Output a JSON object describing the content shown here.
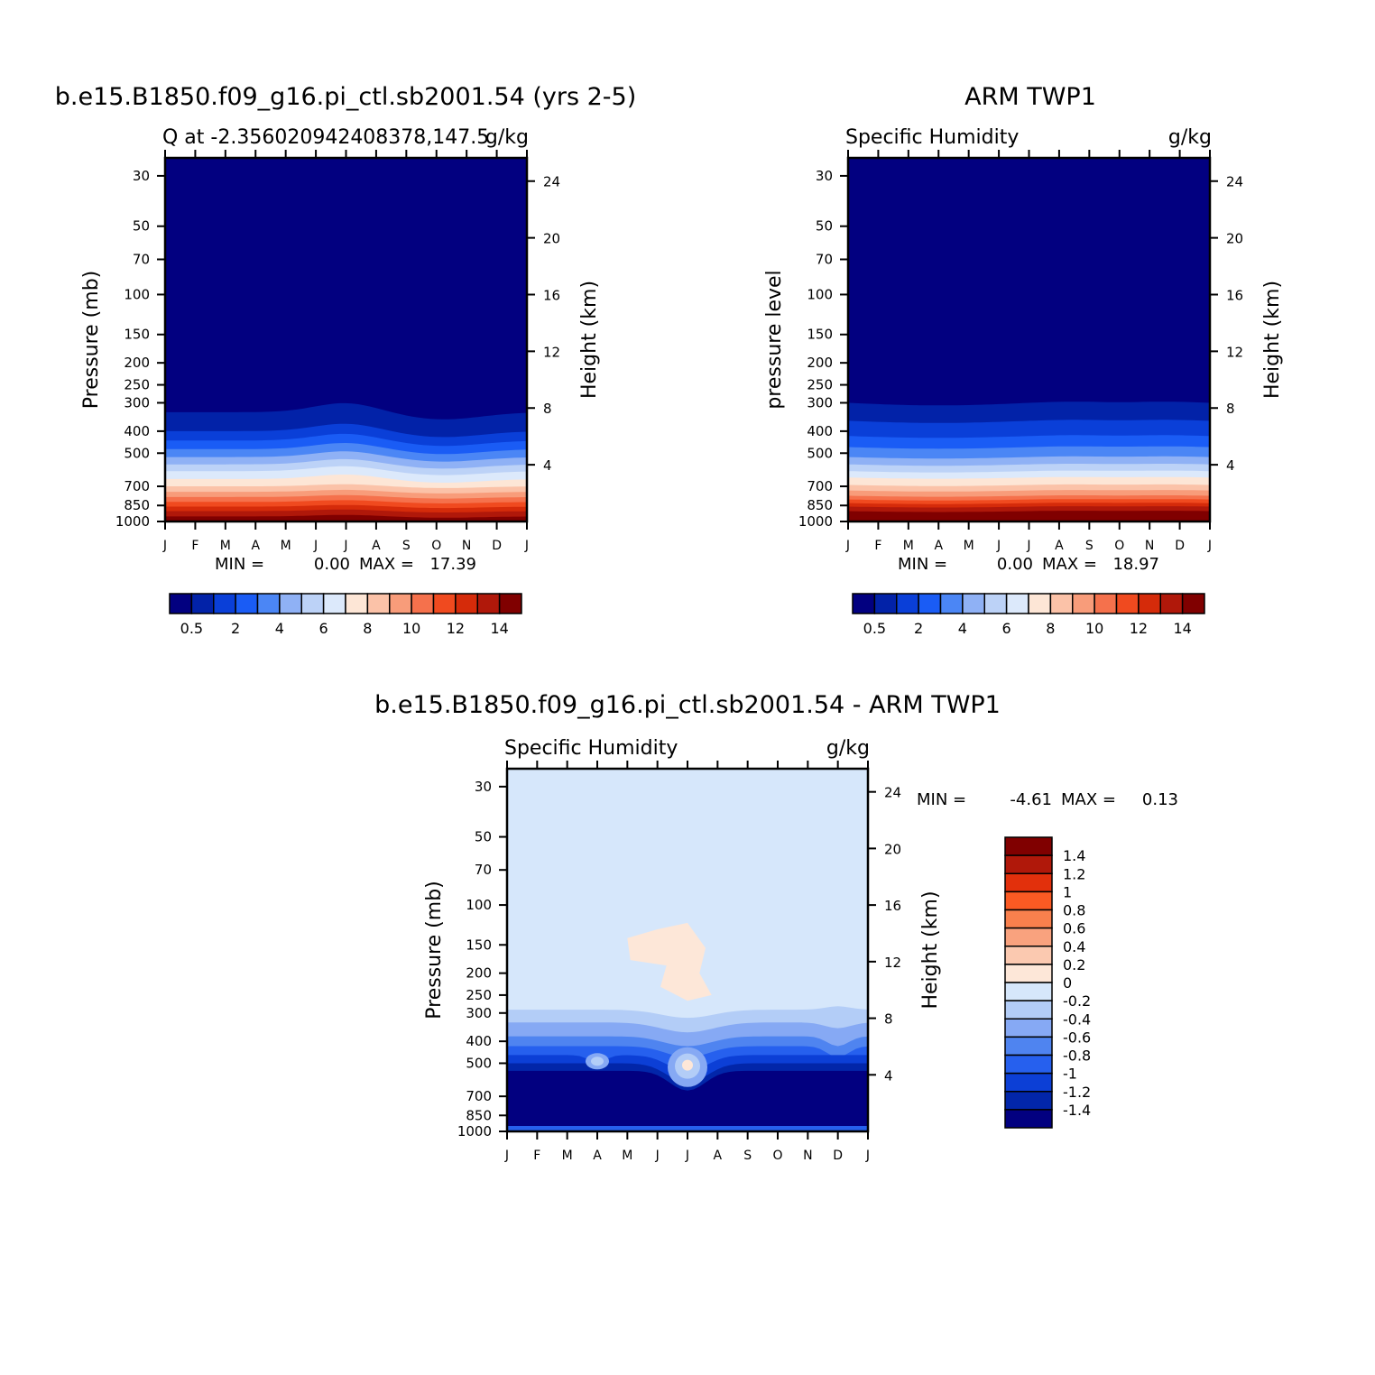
{
  "chart_data": [
    {
      "type": "heatmap",
      "title": "b.e15.B1850.f09_g16.pi_ctl.sb2001.54 (yrs 2-5)",
      "subtitle_left": "Q at -2.356020942408378,147.5",
      "units": "g/kg",
      "ylabel": "Pressure (mb)",
      "y2label": "Height (km)",
      "x_labels": [
        "J",
        "F",
        "M",
        "A",
        "M",
        "J",
        "J",
        "A",
        "S",
        "O",
        "N",
        "D",
        "J"
      ],
      "y_ticks": [
        30,
        50,
        70,
        100,
        150,
        200,
        250,
        300,
        400,
        500,
        700,
        850,
        1000
      ],
      "y2_ticks": [
        4,
        8,
        12,
        16,
        20,
        24
      ],
      "stats": {
        "min_label": "MIN =",
        "min": "0.00",
        "max_label": "MAX =",
        "max": "17.39"
      },
      "colorbar": {
        "labels": [
          "0.5",
          "2",
          "4",
          "6",
          "8",
          "10",
          "12",
          "14"
        ],
        "colors": [
          "#020080",
          "#0222a8",
          "#0a3fd8",
          "#1a5cf5",
          "#4b86f5",
          "#8fb1f5",
          "#bcd2f7",
          "#dce9fb",
          "#fde6d6",
          "#fbc2a8",
          "#f89c7a",
          "#f5714c",
          "#f04a1f",
          "#d52b0a",
          "#b0180a",
          "#800000"
        ]
      }
    },
    {
      "type": "heatmap",
      "title": "ARM TWP1",
      "subtitle_left": "Specific Humidity",
      "units": "g/kg",
      "ylabel": "pressure level",
      "y2label": "Height (km)",
      "x_labels": [
        "J",
        "F",
        "M",
        "A",
        "M",
        "J",
        "J",
        "A",
        "S",
        "O",
        "N",
        "D",
        "J"
      ],
      "y_ticks": [
        30,
        50,
        70,
        100,
        150,
        200,
        250,
        300,
        400,
        500,
        700,
        850,
        1000
      ],
      "y2_ticks": [
        4,
        8,
        12,
        16,
        20,
        24
      ],
      "stats": {
        "min_label": "MIN =",
        "min": "0.00",
        "max_label": "MAX =",
        "max": "18.97"
      },
      "colorbar": {
        "labels": [
          "0.5",
          "2",
          "4",
          "6",
          "8",
          "10",
          "12",
          "14"
        ],
        "colors": [
          "#020080",
          "#0222a8",
          "#0a3fd8",
          "#1a5cf5",
          "#4b86f5",
          "#8fb1f5",
          "#bcd2f7",
          "#dce9fb",
          "#fde6d6",
          "#fbc2a8",
          "#f89c7a",
          "#f5714c",
          "#f04a1f",
          "#d52b0a",
          "#b0180a",
          "#800000"
        ]
      }
    },
    {
      "type": "heatmap",
      "title": "b.e15.B1850.f09_g16.pi_ctl.sb2001.54 - ARM TWP1",
      "subtitle_left": "Specific Humidity",
      "units": "g/kg",
      "ylabel": "Pressure (mb)",
      "y2label": "Height (km)",
      "x_labels": [
        "J",
        "F",
        "M",
        "A",
        "M",
        "J",
        "J",
        "A",
        "S",
        "O",
        "N",
        "D",
        "J"
      ],
      "y_ticks": [
        30,
        50,
        70,
        100,
        150,
        200,
        250,
        300,
        400,
        500,
        700,
        850,
        1000
      ],
      "y2_ticks": [
        4,
        8,
        12,
        16,
        20,
        24
      ],
      "stats": {
        "min_label": "MIN =",
        "min": "-4.61",
        "max_label": "MAX =",
        "max": "0.13"
      },
      "colorbar": {
        "labels": [
          "1.4",
          "1.2",
          "1",
          "0.8",
          "0.6",
          "0.4",
          "0.2",
          "0",
          "-0.2",
          "-0.4",
          "-0.6",
          "-0.8",
          "-1",
          "-1.2",
          "-1.4"
        ],
        "colors": [
          "#800000",
          "#b0180a",
          "#e2300c",
          "#fb5a23",
          "#f9804d",
          "#f9a27e",
          "#fbc9b0",
          "#fde7d8",
          "#d6e7fb",
          "#b3cdf7",
          "#86a9f4",
          "#4f84f0",
          "#2660ee",
          "#0c3fd6",
          "#0226a9",
          "#020080"
        ]
      }
    }
  ]
}
